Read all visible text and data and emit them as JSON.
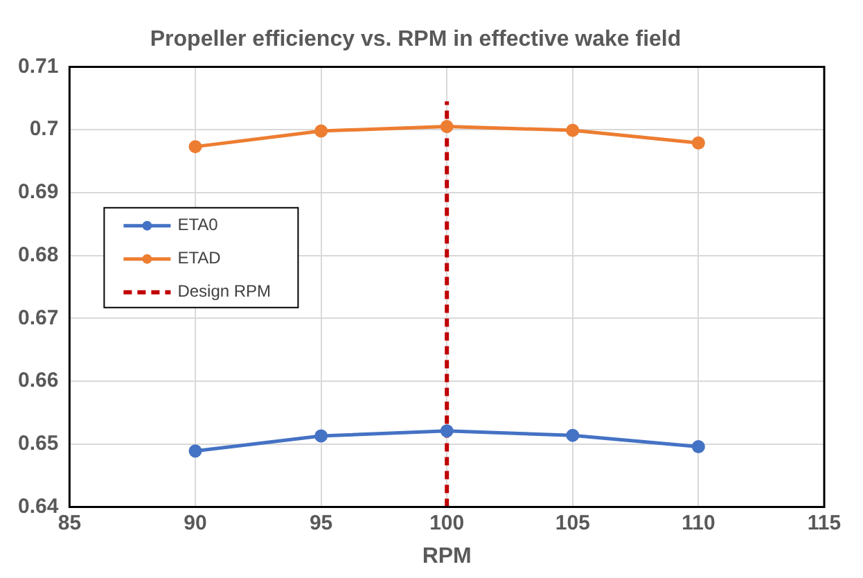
{
  "chart_data": {
    "type": "line",
    "title": "Propeller efficiency vs. RPM in effective wake field",
    "xlabel": "RPM",
    "x": [
      90,
      95,
      100,
      105,
      110
    ],
    "series": [
      {
        "name": "ETA0",
        "color": "#4472c4",
        "values": [
          0.6489,
          0.6513,
          0.6521,
          0.6514,
          0.6496
        ]
      },
      {
        "name": "ETAD",
        "color": "#ed7d31",
        "values": [
          0.6973,
          0.6998,
          0.7005,
          0.6999,
          0.6979
        ]
      },
      {
        "name": "Design RPM",
        "color": "#c00000",
        "x": [
          100,
          100
        ],
        "values": [
          0.64,
          0.7045
        ],
        "line_style": "dashed",
        "marker": "none"
      }
    ],
    "xlim": [
      85,
      115
    ],
    "xticks": [
      85,
      90,
      95,
      100,
      105,
      110,
      115
    ],
    "ylim": [
      0.64,
      0.71
    ],
    "yticks": [
      0.64,
      0.65,
      0.66,
      0.67,
      0.68,
      0.69,
      0.7,
      0.71
    ],
    "grid": true,
    "legend": "left",
    "marker": "circle",
    "line_style": "solid"
  }
}
